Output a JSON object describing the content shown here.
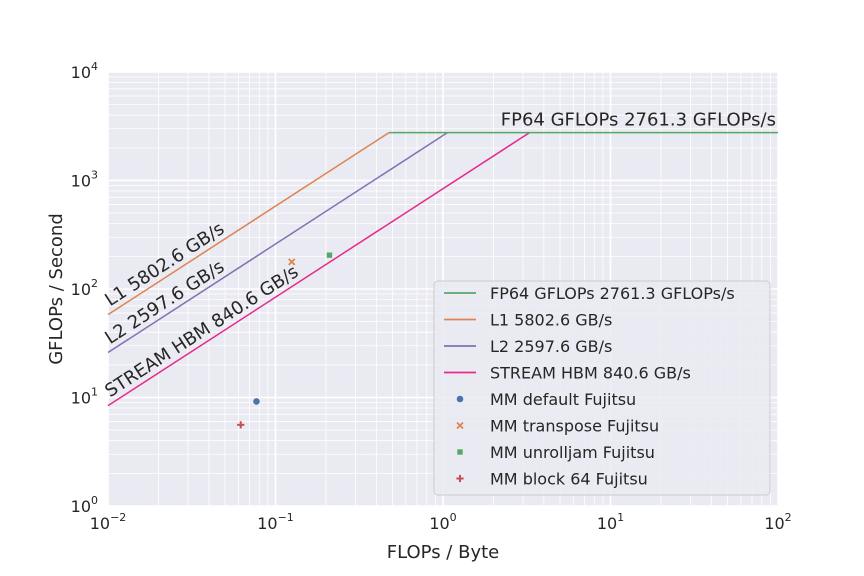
{
  "chart_data": {
    "type": "line",
    "xscale": "log",
    "yscale": "log",
    "xlim": [
      0.01,
      100
    ],
    "ylim": [
      1,
      10000
    ],
    "xlabel": "FLOPs / Byte",
    "ylabel": "GFLOPs / Second",
    "grid": true,
    "legend_position": "lower-right",
    "x_ticks": [
      {
        "value": 0.01,
        "base": "10",
        "exp": "−2"
      },
      {
        "value": 0.1,
        "base": "10",
        "exp": "−1"
      },
      {
        "value": 1,
        "base": "10",
        "exp": "0"
      },
      {
        "value": 10,
        "base": "10",
        "exp": "1"
      },
      {
        "value": 100,
        "base": "10",
        "exp": "2"
      }
    ],
    "y_ticks": [
      {
        "value": 1,
        "base": "10",
        "exp": "0"
      },
      {
        "value": 10,
        "base": "10",
        "exp": "1"
      },
      {
        "value": 100,
        "base": "10",
        "exp": "2"
      },
      {
        "value": 1000,
        "base": "10",
        "exp": "3"
      },
      {
        "value": 10000,
        "base": "10",
        "exp": "4"
      }
    ],
    "peak": {
      "name": "FP64 GFLOPs 2761.3 GFLOPs/s",
      "gflops": 2761.3,
      "color": "#55a868"
    },
    "bandwidths": [
      {
        "name": "L1 5802.6 GB/s",
        "gbps": 5802.6,
        "color": "#dd8452"
      },
      {
        "name": "L2 2597.6 GB/s",
        "gbps": 2597.6,
        "color": "#8172b3"
      },
      {
        "name": "STREAM HBM 840.6 GB/s",
        "gbps": 840.6,
        "color": "#e7298a"
      }
    ],
    "points": [
      {
        "name": "MM default Fujitsu",
        "x": 0.077,
        "y": 9.2,
        "marker": "circle",
        "color": "#4c72b0"
      },
      {
        "name": "MM transpose Fujitsu",
        "x": 0.125,
        "y": 178,
        "marker": "x",
        "color": "#dd8452"
      },
      {
        "name": "MM unrolljam Fujitsu",
        "x": 0.21,
        "y": 205,
        "marker": "square",
        "color": "#55a868"
      },
      {
        "name": "MM block 64 Fujitsu",
        "x": 0.062,
        "y": 5.6,
        "marker": "plus",
        "color": "#c44e52"
      }
    ]
  }
}
